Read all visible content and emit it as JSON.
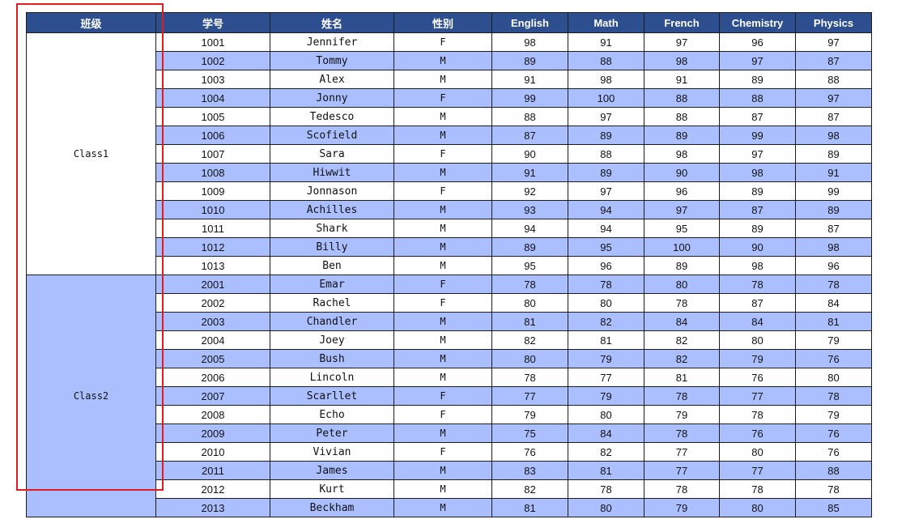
{
  "header": {
    "class": "班级",
    "id": "学号",
    "name": "姓名",
    "gender": "性别",
    "english": "English",
    "math": "Math",
    "french": "French",
    "chemistry": "Chemistry",
    "physics": "Physics"
  },
  "groups": [
    {
      "label": "Class1",
      "shade": false,
      "rows": [
        {
          "id": "1001",
          "name": "Jennifer",
          "gender": "F",
          "english": "98",
          "math": "91",
          "french": "97",
          "chemistry": "96",
          "physics": "97"
        },
        {
          "id": "1002",
          "name": "Tommy",
          "gender": "M",
          "english": "89",
          "math": "88",
          "french": "98",
          "chemistry": "97",
          "physics": "87"
        },
        {
          "id": "1003",
          "name": "Alex",
          "gender": "M",
          "english": "91",
          "math": "98",
          "french": "91",
          "chemistry": "89",
          "physics": "88"
        },
        {
          "id": "1004",
          "name": "Jonny",
          "gender": "F",
          "english": "99",
          "math": "100",
          "french": "88",
          "chemistry": "88",
          "physics": "97"
        },
        {
          "id": "1005",
          "name": "Tedesco",
          "gender": "M",
          "english": "88",
          "math": "97",
          "french": "88",
          "chemistry": "87",
          "physics": "87"
        },
        {
          "id": "1006",
          "name": "Scofield",
          "gender": "M",
          "english": "87",
          "math": "89",
          "french": "89",
          "chemistry": "99",
          "physics": "98"
        },
        {
          "id": "1007",
          "name": "Sara",
          "gender": "F",
          "english": "90",
          "math": "88",
          "french": "98",
          "chemistry": "97",
          "physics": "89"
        },
        {
          "id": "1008",
          "name": "Hiwwit",
          "gender": "M",
          "english": "91",
          "math": "89",
          "french": "90",
          "chemistry": "98",
          "physics": "91"
        },
        {
          "id": "1009",
          "name": "Jonnason",
          "gender": "F",
          "english": "92",
          "math": "97",
          "french": "96",
          "chemistry": "89",
          "physics": "99"
        },
        {
          "id": "1010",
          "name": "Achilles",
          "gender": "M",
          "english": "93",
          "math": "94",
          "french": "97",
          "chemistry": "87",
          "physics": "89"
        },
        {
          "id": "1011",
          "name": "Shark",
          "gender": "M",
          "english": "94",
          "math": "94",
          "french": "95",
          "chemistry": "89",
          "physics": "87"
        },
        {
          "id": "1012",
          "name": "Billy",
          "gender": "M",
          "english": "89",
          "math": "95",
          "french": "100",
          "chemistry": "90",
          "physics": "98"
        },
        {
          "id": "1013",
          "name": "Ben",
          "gender": "M",
          "english": "95",
          "math": "96",
          "french": "89",
          "chemistry": "98",
          "physics": "96"
        }
      ]
    },
    {
      "label": "Class2",
      "shade": true,
      "rows": [
        {
          "id": "2001",
          "name": "Emar",
          "gender": "F",
          "english": "78",
          "math": "78",
          "french": "80",
          "chemistry": "78",
          "physics": "78"
        },
        {
          "id": "2002",
          "name": "Rachel",
          "gender": "F",
          "english": "80",
          "math": "80",
          "french": "78",
          "chemistry": "87",
          "physics": "84"
        },
        {
          "id": "2003",
          "name": "Chandler",
          "gender": "M",
          "english": "81",
          "math": "82",
          "french": "84",
          "chemistry": "84",
          "physics": "81"
        },
        {
          "id": "2004",
          "name": "Joey",
          "gender": "M",
          "english": "82",
          "math": "81",
          "french": "82",
          "chemistry": "80",
          "physics": "79"
        },
        {
          "id": "2005",
          "name": "Bush",
          "gender": "M",
          "english": "80",
          "math": "79",
          "french": "82",
          "chemistry": "79",
          "physics": "76"
        },
        {
          "id": "2006",
          "name": "Lincoln",
          "gender": "M",
          "english": "78",
          "math": "77",
          "french": "81",
          "chemistry": "76",
          "physics": "80"
        },
        {
          "id": "2007",
          "name": "Scarllet",
          "gender": "F",
          "english": "77",
          "math": "79",
          "french": "78",
          "chemistry": "77",
          "physics": "78"
        },
        {
          "id": "2008",
          "name": "Echo",
          "gender": "F",
          "english": "79",
          "math": "80",
          "french": "79",
          "chemistry": "78",
          "physics": "79"
        },
        {
          "id": "2009",
          "name": "Peter",
          "gender": "M",
          "english": "75",
          "math": "84",
          "french": "78",
          "chemistry": "76",
          "physics": "76"
        },
        {
          "id": "2010",
          "name": "Vivian",
          "gender": "F",
          "english": "76",
          "math": "82",
          "french": "77",
          "chemistry": "80",
          "physics": "76"
        },
        {
          "id": "2011",
          "name": "James",
          "gender": "M",
          "english": "83",
          "math": "81",
          "french": "77",
          "chemistry": "77",
          "physics": "88"
        },
        {
          "id": "2012",
          "name": "Kurt",
          "gender": "M",
          "english": "82",
          "math": "78",
          "french": "78",
          "chemistry": "78",
          "physics": "78"
        },
        {
          "id": "2013",
          "name": "Beckham",
          "gender": "M",
          "english": "81",
          "math": "80",
          "french": "79",
          "chemistry": "80",
          "physics": "85"
        }
      ]
    }
  ],
  "colors": {
    "header_bg": "#2e4f8f",
    "band_bg": "#abbfff",
    "selection_border": "#e11b22"
  }
}
